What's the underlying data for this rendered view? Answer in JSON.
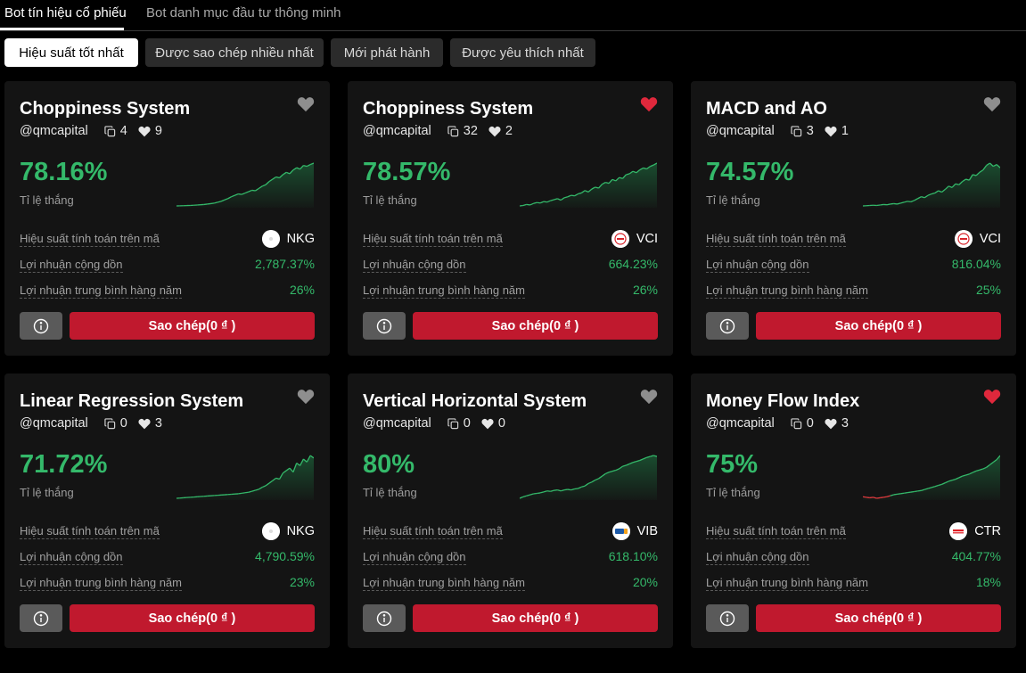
{
  "tabs": [
    {
      "label": "Bot tín hiệu cổ phiếu",
      "active": true
    },
    {
      "label": "Bot danh mục đầu tư thông minh",
      "active": false
    }
  ],
  "filters": [
    {
      "label": "Hiệu suất tốt nhất",
      "active": true
    },
    {
      "label": "Được sao chép nhiều nhất",
      "active": false
    },
    {
      "label": "Mới phát hành",
      "active": false
    },
    {
      "label": "Được yêu thích nhất",
      "active": false
    }
  ],
  "labels": {
    "win_rate": "Tỉ lệ thắng",
    "symbol_perf": "Hiệu suất tính toán trên mã",
    "cumulative": "Lợi nhuận cộng dồn",
    "annual": "Lợi nhuận trung bình hàng năm",
    "copy_button": "Sao chép(0 ₫ )"
  },
  "colors": {
    "accent": "#c0192e",
    "positive": "#34b96a",
    "negative": "#e03a3e",
    "heart_inactive": "#8e8e8e",
    "heart_active": "#e0283c"
  },
  "cards": [
    {
      "title": "Choppiness System",
      "author": "@qmcapital",
      "copies": "4",
      "likes": "9",
      "favorited": false,
      "win_rate": "78.16%",
      "ticker": "NKG",
      "logo": "nkg-logo",
      "cumulative": "2,787.37%",
      "annual": "26%",
      "series": [
        2,
        2.2,
        2.5,
        2.8,
        3,
        3.5,
        4,
        4.5,
        5,
        6,
        7,
        8,
        10,
        12,
        15,
        18,
        22,
        25,
        28,
        27,
        30,
        33,
        36,
        35,
        40,
        45,
        48,
        55,
        60,
        65,
        63,
        70,
        75,
        72,
        80,
        85,
        82,
        90,
        88,
        92,
        95
      ]
    },
    {
      "title": "Choppiness System",
      "author": "@qmcapital",
      "copies": "32",
      "likes": "2",
      "favorited": true,
      "win_rate": "78.57%",
      "ticker": "VCI",
      "logo": "vci-logo",
      "cumulative": "664.23%",
      "annual": "26%",
      "series": [
        3,
        4,
        6,
        5,
        8,
        10,
        9,
        12,
        11,
        14,
        16,
        18,
        15,
        20,
        22,
        25,
        24,
        28,
        30,
        35,
        32,
        38,
        42,
        40,
        48,
        52,
        50,
        58,
        55,
        62,
        60,
        68,
        70,
        75,
        72,
        78,
        82,
        80,
        85,
        88,
        92
      ]
    },
    {
      "title": "MACD and AO",
      "author": "@qmcapital",
      "copies": "3",
      "likes": "1",
      "favorited": false,
      "win_rate": "74.57%",
      "ticker": "VCI",
      "logo": "vci-logo",
      "cumulative": "816.04%",
      "annual": "25%",
      "series": [
        2,
        2.5,
        3,
        3.5,
        3,
        4,
        5,
        4.5,
        6,
        7,
        6,
        8,
        10,
        12,
        11,
        14,
        18,
        22,
        20,
        25,
        28,
        30,
        35,
        32,
        38,
        45,
        42,
        50,
        48,
        55,
        60,
        58,
        70,
        68,
        75,
        80,
        90,
        95,
        88,
        92,
        85
      ]
    },
    {
      "title": "Linear Regression System",
      "author": "@qmcapital",
      "copies": "0",
      "likes": "3",
      "favorited": false,
      "win_rate": "71.72%",
      "ticker": "NKG",
      "logo": "nkg-logo",
      "cumulative": "4,790.59%",
      "annual": "23%",
      "series": [
        0,
        0.5,
        1,
        1.5,
        2,
        2.5,
        3,
        3.5,
        4,
        4.5,
        5,
        5.5,
        6,
        6.5,
        7,
        7.5,
        8,
        8.5,
        9,
        10,
        11,
        12,
        14,
        16,
        18,
        22,
        25,
        30,
        35,
        40,
        38,
        50,
        55,
        60,
        52,
        70,
        65,
        78,
        72,
        85,
        80
      ]
    },
    {
      "title": "Vertical Horizontal System",
      "author": "@qmcapital",
      "copies": "0",
      "likes": "0",
      "favorited": false,
      "win_rate": "80%",
      "ticker": "VIB",
      "logo": "vib-logo",
      "cumulative": "618.10%",
      "annual": "20%",
      "series": [
        5,
        8,
        10,
        12,
        14,
        15,
        16,
        18,
        20,
        19,
        21,
        22,
        20,
        22,
        23,
        22,
        24,
        25,
        28,
        30,
        35,
        38,
        42,
        45,
        50,
        55,
        58,
        60,
        62,
        65,
        70,
        72,
        75,
        78,
        80,
        82,
        85,
        88,
        90,
        92,
        90
      ]
    },
    {
      "title": "Money Flow Index",
      "author": "@qmcapital",
      "copies": "0",
      "likes": "3",
      "favorited": true,
      "win_rate": "75%",
      "ticker": "CTR",
      "logo": "ctr-logo",
      "cumulative": "404.77%",
      "annual": "18%",
      "series": [
        -2,
        -3,
        -4,
        -3,
        -5,
        -4,
        -3,
        -2,
        0,
        2,
        3,
        4,
        5,
        6,
        7,
        8,
        9,
        10,
        12,
        14,
        16,
        18,
        20,
        22,
        25,
        28,
        30,
        32,
        35,
        38,
        40,
        42,
        45,
        48,
        50,
        52,
        55,
        60,
        65,
        70,
        78
      ]
    }
  ]
}
